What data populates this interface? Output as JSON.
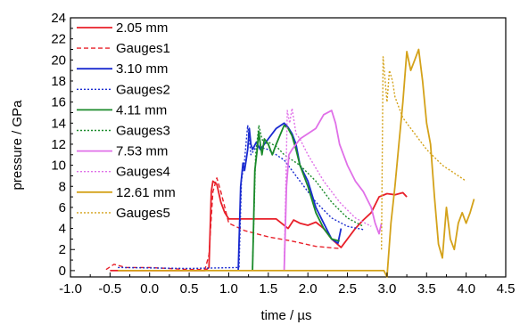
{
  "chart_data": {
    "type": "line",
    "xlabel": "time / µs",
    "ylabel": "pressure / GPa",
    "xlim": [
      -1.0,
      4.5
    ],
    "ylim": [
      -0.6,
      24
    ],
    "x_ticks": [
      -1.0,
      -0.5,
      0.0,
      0.5,
      1.0,
      1.5,
      2.0,
      2.5,
      3.0,
      3.5,
      4.0,
      4.5
    ],
    "x_tick_labels": [
      "-1.0",
      "-0.5",
      "0.0",
      "0.5",
      "1.0",
      "1.5",
      "2.0",
      "2.5",
      "3.0",
      "3.5",
      "4.0",
      "4.5"
    ],
    "y_ticks": [
      0,
      2,
      4,
      6,
      8,
      10,
      12,
      14,
      16,
      18,
      20,
      22,
      24
    ],
    "y_tick_labels": [
      "0",
      "2",
      "4",
      "6",
      "8",
      "10",
      "12",
      "14",
      "16",
      "18",
      "20",
      "22",
      "24"
    ],
    "grid": false,
    "legend_position": "top-left",
    "series": [
      {
        "name": "2.05 mm",
        "color": "#e8202a",
        "dash": "solid",
        "x": [
          -0.5,
          0.7,
          0.75,
          0.78,
          0.8,
          0.85,
          0.9,
          0.95,
          1.0,
          1.3,
          1.6,
          1.75,
          1.82,
          1.9,
          2.0,
          2.1,
          2.2,
          2.3,
          2.36,
          2.42,
          2.5,
          2.6,
          2.7,
          2.8,
          2.9,
          3.0,
          3.1,
          3.2,
          3.25
        ],
        "y": [
          0,
          0,
          0.3,
          7.5,
          8.5,
          8.2,
          6.5,
          5.5,
          4.9,
          4.9,
          4.9,
          4.0,
          4.8,
          4.5,
          4.3,
          4.6,
          4.0,
          3.0,
          2.6,
          2.2,
          3.0,
          4.0,
          4.8,
          5.5,
          7.0,
          7.3,
          7.2,
          7.4,
          7.0
        ]
      },
      {
        "name": "Gauges1",
        "color": "#e8202a",
        "dash": "dashed",
        "x": [
          -0.55,
          -0.45,
          -0.3,
          0.0,
          0.5,
          0.7,
          0.75,
          0.8,
          0.85,
          0.9,
          1.0,
          1.2,
          1.5,
          1.8,
          2.1,
          2.4
        ],
        "y": [
          0.1,
          0.6,
          0.3,
          0.3,
          0.1,
          0.1,
          1.5,
          7.5,
          8.8,
          7.5,
          4.5,
          3.8,
          3.2,
          2.8,
          2.3,
          2.1
        ]
      },
      {
        "name": "3.10 mm",
        "color": "#1a2bd0",
        "dash": "solid",
        "x": [
          1.12,
          1.15,
          1.18,
          1.2,
          1.22,
          1.24,
          1.26,
          1.28,
          1.3,
          1.35,
          1.4,
          1.5,
          1.6,
          1.7,
          1.75,
          1.8,
          1.85,
          1.9,
          2.0,
          2.1,
          2.2,
          2.3,
          2.38,
          2.42
        ],
        "y": [
          0,
          8.0,
          10.2,
          9.5,
          10.5,
          11.5,
          13.5,
          12.0,
          11.5,
          12.2,
          11.5,
          12.5,
          13.5,
          14.0,
          13.6,
          13.0,
          12.0,
          10.0,
          8.5,
          6.0,
          4.5,
          3.0,
          2.6,
          4.0
        ]
      },
      {
        "name": "Gauges2",
        "color": "#1a2bd0",
        "dash": "dotted",
        "x": [
          -0.4,
          0.5,
          1.13,
          1.16,
          1.2,
          1.24,
          1.28,
          1.35,
          1.5,
          1.7,
          1.9,
          2.1,
          2.3,
          2.5,
          2.7
        ],
        "y": [
          0.3,
          0.2,
          0.3,
          8.5,
          10.5,
          13.8,
          11.0,
          11.8,
          11.5,
          10.5,
          8.5,
          6.5,
          5.0,
          4.2,
          3.9
        ]
      },
      {
        "name": "4.11 mm",
        "color": "#1a8a2a",
        "dash": "solid",
        "x": [
          1.3,
          1.33,
          1.36,
          1.38,
          1.4,
          1.42,
          1.45,
          1.5,
          1.55,
          1.6,
          1.7,
          1.75,
          1.8,
          1.85,
          1.9,
          2.0,
          2.1,
          2.2,
          2.3,
          2.4
        ],
        "y": [
          0,
          9.5,
          11.5,
          13.2,
          12.0,
          11.0,
          12.5,
          12.0,
          11.0,
          12.0,
          13.8,
          13.5,
          12.8,
          11.5,
          10.0,
          8.0,
          5.5,
          4.0,
          3.0,
          2.8
        ]
      },
      {
        "name": "Gauges3",
        "color": "#1a8a2a",
        "dash": "dotted",
        "x": [
          1.3,
          1.34,
          1.38,
          1.42,
          1.45,
          1.5,
          1.6,
          1.7,
          1.9,
          2.1,
          2.3,
          2.5,
          2.7
        ],
        "y": [
          0.3,
          11.0,
          13.8,
          12.5,
          12.0,
          12.2,
          11.8,
          11.0,
          10.0,
          8.5,
          6.5,
          5.0,
          4.2
        ]
      },
      {
        "name": "7.53 mm",
        "color": "#e070e8",
        "dash": "solid",
        "x": [
          1.7,
          1.73,
          1.76,
          1.8,
          1.85,
          1.9,
          2.0,
          2.1,
          2.2,
          2.3,
          2.35,
          2.4,
          2.5,
          2.6,
          2.7,
          2.8,
          2.85,
          2.9,
          2.93
        ],
        "y": [
          0,
          8.0,
          11.0,
          11.5,
          12.0,
          12.5,
          13.0,
          13.5,
          14.8,
          15.2,
          14.0,
          12.0,
          10.0,
          8.5,
          7.5,
          6.0,
          4.5,
          3.5,
          4.5
        ]
      },
      {
        "name": "Gauges4",
        "color": "#e070e8",
        "dash": "dotted",
        "x": [
          1.7,
          1.74,
          1.77,
          1.8,
          1.85,
          1.9,
          2.0,
          2.2,
          2.4,
          2.6,
          2.8
        ],
        "y": [
          0.3,
          15.2,
          14.0,
          15.4,
          13.0,
          12.5,
          11.0,
          8.5,
          6.5,
          5.0,
          4.2
        ]
      },
      {
        "name": "12.61 mm",
        "color": "#d4a21a",
        "dash": "solid",
        "x": [
          -0.4,
          0.5,
          1.5,
          2.5,
          2.96,
          3.0,
          3.05,
          3.1,
          3.15,
          3.2,
          3.25,
          3.3,
          3.35,
          3.4,
          3.45,
          3.5,
          3.55,
          3.6,
          3.65,
          3.7,
          3.75,
          3.8,
          3.85,
          3.9,
          3.95,
          4.0,
          4.05,
          4.1
        ],
        "y": [
          0,
          0,
          0,
          0,
          0,
          -0.6,
          4.5,
          8.0,
          12.0,
          16.0,
          20.8,
          19.0,
          20.0,
          21.0,
          18.0,
          14.0,
          12.0,
          7.0,
          2.5,
          1.2,
          6.0,
          3.0,
          2.0,
          4.5,
          5.5,
          4.5,
          5.5,
          6.8
        ]
      },
      {
        "name": "Gauges5",
        "color": "#d4a21a",
        "dash": "dotted",
        "x": [
          2.93,
          2.95,
          3.0,
          3.03,
          3.07,
          3.1,
          3.15,
          3.2,
          3.3,
          3.5,
          3.7,
          3.9,
          4.0
        ],
        "y": [
          2.0,
          20.3,
          16.0,
          19.0,
          18.0,
          16.5,
          15.5,
          14.5,
          13.5,
          11.5,
          10.0,
          9.0,
          8.5
        ]
      }
    ]
  }
}
